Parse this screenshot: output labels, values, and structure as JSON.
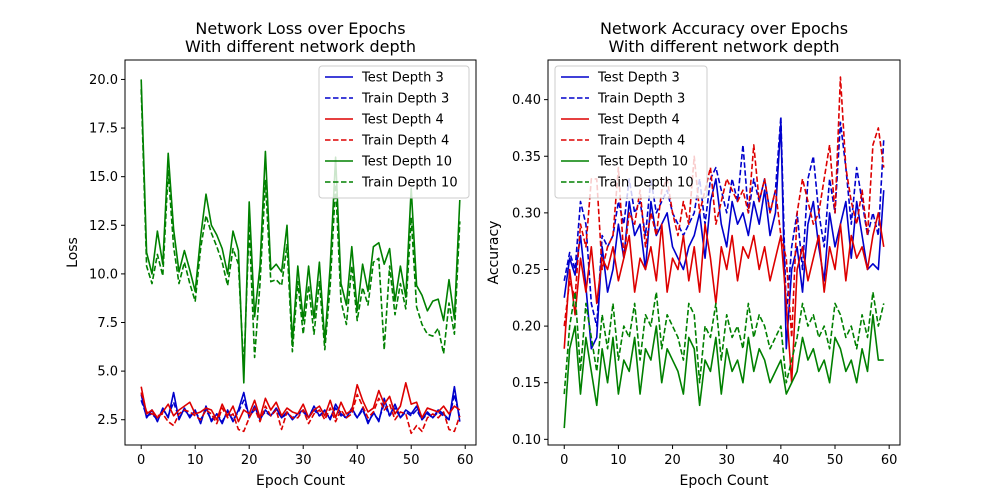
{
  "chart_data": [
    {
      "type": "line",
      "title": "Network Loss over Epochs\nWith different network depth",
      "xlabel": "Epoch Count",
      "ylabel": "Loss",
      "xlim": [
        -3,
        62
      ],
      "ylim": [
        1.2,
        21.0
      ],
      "xticks": [
        0,
        10,
        20,
        30,
        40,
        50,
        60
      ],
      "yticks": [
        2.5,
        5.0,
        7.5,
        10.0,
        12.5,
        15.0,
        17.5,
        20.0
      ],
      "ytick_labels": [
        "2.5",
        "5.0",
        "7.5",
        "10.0",
        "12.5",
        "15.0",
        "17.5",
        "20.0"
      ],
      "legend_position": "top-right",
      "grid": false,
      "x": [
        0,
        1,
        2,
        3,
        4,
        5,
        6,
        7,
        8,
        9,
        10,
        11,
        12,
        13,
        14,
        15,
        16,
        17,
        18,
        19,
        20,
        21,
        22,
        23,
        24,
        25,
        26,
        27,
        28,
        29,
        30,
        31,
        32,
        33,
        34,
        35,
        36,
        37,
        38,
        39,
        40,
        41,
        42,
        43,
        44,
        45,
        46,
        47,
        48,
        49,
        50,
        51,
        52,
        53,
        54,
        55,
        56,
        57,
        58,
        59
      ],
      "series": [
        {
          "name": "Test Depth 3",
          "color": "#0000cc",
          "style": "solid",
          "values": [
            3.8,
            2.6,
            3.0,
            2.4,
            3.1,
            2.6,
            3.9,
            2.5,
            3.1,
            2.6,
            3.0,
            2.3,
            3.2,
            2.4,
            2.8,
            2.3,
            3.0,
            2.4,
            3.0,
            3.9,
            2.6,
            3.2,
            2.5,
            3.0,
            2.7,
            3.1,
            2.6,
            2.9,
            2.5,
            2.8,
            3.0,
            2.6,
            3.2,
            2.7,
            3.0,
            2.5,
            3.3,
            2.8,
            2.6,
            3.1,
            2.6,
            3.1,
            2.3,
            2.9,
            2.4,
            3.6,
            2.7,
            3.3,
            2.6,
            3.0,
            2.8,
            3.2,
            2.5,
            2.9,
            2.6,
            3.0,
            2.8,
            2.5,
            4.2,
            2.4
          ]
        },
        {
          "name": "Train Depth 3",
          "color": "#0000cc",
          "style": "dashed",
          "values": [
            3.5,
            2.7,
            2.8,
            2.5,
            3.0,
            2.7,
            3.4,
            2.6,
            3.0,
            2.7,
            2.9,
            2.5,
            3.0,
            2.5,
            2.8,
            2.4,
            2.9,
            2.5,
            2.9,
            3.5,
            2.7,
            3.0,
            2.6,
            2.9,
            2.7,
            3.0,
            2.6,
            2.8,
            2.6,
            2.8,
            2.9,
            2.6,
            3.0,
            2.7,
            2.9,
            2.6,
            3.1,
            2.7,
            2.6,
            3.0,
            2.6,
            3.0,
            2.4,
            2.8,
            2.5,
            3.3,
            2.7,
            3.1,
            2.6,
            2.9,
            2.7,
            3.0,
            2.5,
            2.8,
            2.6,
            2.9,
            2.7,
            2.5,
            3.8,
            2.6
          ]
        },
        {
          "name": "Test Depth 4",
          "color": "#dd0000",
          "style": "solid",
          "values": [
            4.2,
            2.8,
            3.0,
            2.6,
            2.9,
            3.3,
            2.7,
            3.0,
            3.2,
            3.4,
            2.8,
            2.9,
            3.1,
            3.0,
            2.5,
            3.3,
            2.7,
            3.2,
            2.4,
            3.0,
            2.8,
            3.5,
            2.6,
            3.6,
            3.0,
            3.4,
            2.7,
            3.1,
            2.9,
            2.8,
            3.3,
            2.6,
            3.0,
            3.2,
            2.7,
            3.5,
            2.6,
            3.4,
            2.8,
            3.0,
            4.3,
            3.5,
            2.9,
            3.1,
            4.0,
            3.3,
            3.7,
            2.8,
            3.2,
            4.4,
            3.3,
            3.4,
            2.6,
            3.1,
            3.0,
            2.9,
            3.2,
            2.8,
            3.2,
            3.0
          ]
        },
        {
          "name": "Train Depth 4",
          "color": "#dd0000",
          "style": "dashed",
          "values": [
            3.9,
            2.9,
            2.8,
            2.7,
            2.8,
            2.4,
            2.2,
            2.8,
            3.0,
            2.9,
            2.7,
            2.5,
            3.0,
            2.8,
            2.3,
            3.1,
            2.6,
            2.8,
            2.0,
            1.9,
            2.6,
            3.1,
            2.4,
            3.2,
            2.7,
            3.0,
            2.0,
            2.9,
            2.6,
            2.6,
            3.0,
            2.3,
            2.8,
            3.0,
            2.5,
            3.1,
            2.4,
            3.0,
            2.6,
            2.8,
            3.8,
            3.2,
            2.6,
            2.9,
            3.6,
            3.0,
            3.3,
            2.5,
            2.9,
            2.8,
            1.8,
            2.2,
            1.9,
            2.6,
            2.8,
            2.6,
            2.9,
            2.0,
            1.9,
            2.7
          ]
        },
        {
          "name": "Test Depth 10",
          "color": "#008000",
          "style": "solid",
          "values": [
            20.0,
            11.1,
            10.0,
            12.2,
            10.5,
            16.2,
            12.3,
            10.1,
            11.2,
            10.2,
            9.1,
            11.9,
            14.1,
            12.5,
            12.0,
            11.3,
            10.0,
            12.2,
            11.2,
            4.4,
            13.7,
            7.8,
            10.4,
            16.3,
            10.2,
            10.5,
            10.1,
            12.5,
            6.5,
            10.4,
            7.6,
            10.4,
            7.7,
            10.6,
            6.5,
            10.4,
            16.0,
            9.5,
            8.4,
            11.4,
            8.1,
            10.5,
            9.1,
            11.4,
            11.6,
            10.5,
            11.3,
            8.6,
            10.4,
            8.8,
            14.4,
            9.4,
            8.9,
            8.1,
            8.6,
            8.7,
            7.6,
            9.7,
            7.7,
            13.8
          ]
        },
        {
          "name": "Train Depth 10",
          "color": "#008000",
          "style": "dashed",
          "values": [
            19.5,
            10.4,
            9.5,
            11.0,
            9.9,
            15.3,
            11.4,
            9.5,
            10.6,
            9.5,
            8.6,
            11.3,
            13.0,
            12.1,
            11.4,
            10.6,
            9.4,
            11.3,
            10.5,
            5.1,
            12.5,
            5.7,
            9.5,
            14.8,
            9.6,
            9.7,
            9.4,
            11.5,
            6.0,
            9.6,
            6.9,
            9.4,
            6.9,
            9.6,
            6.1,
            9.4,
            14.6,
            8.6,
            7.4,
            10.4,
            7.6,
            9.3,
            8.4,
            10.6,
            10.8,
            6.1,
            10.4,
            7.9,
            9.5,
            8.2,
            12.9,
            8.3,
            7.4,
            6.9,
            6.8,
            7.2,
            5.9,
            8.5,
            6.9,
            12.7
          ]
        }
      ]
    },
    {
      "type": "line",
      "title": "Network Accuracy over Epochs\nWith different network depth",
      "xlabel": "Epoch Count",
      "ylabel": "Accuracy",
      "xlim": [
        -3,
        62
      ],
      "ylim": [
        0.095,
        0.435
      ],
      "xticks": [
        0,
        10,
        20,
        30,
        40,
        50,
        60
      ],
      "yticks": [
        0.1,
        0.15,
        0.2,
        0.25,
        0.3,
        0.35,
        0.4
      ],
      "ytick_labels": [
        "0.10",
        "0.15",
        "0.20",
        "0.25",
        "0.30",
        "0.35",
        "0.40"
      ],
      "legend_position": "top-left",
      "grid": false,
      "x": [
        0,
        1,
        2,
        3,
        4,
        5,
        6,
        7,
        8,
        9,
        10,
        11,
        12,
        13,
        14,
        15,
        16,
        17,
        18,
        19,
        20,
        21,
        22,
        23,
        24,
        25,
        26,
        27,
        28,
        29,
        30,
        31,
        32,
        33,
        34,
        35,
        36,
        37,
        38,
        39,
        40,
        41,
        42,
        43,
        44,
        45,
        46,
        47,
        48,
        49,
        50,
        51,
        52,
        53,
        54,
        55,
        56,
        57,
        58,
        59
      ],
      "series": [
        {
          "name": "Test Depth 3",
          "color": "#0000cc",
          "style": "solid",
          "values": [
            0.225,
            0.26,
            0.245,
            0.28,
            0.235,
            0.18,
            0.19,
            0.27,
            0.23,
            0.25,
            0.29,
            0.26,
            0.31,
            0.28,
            0.29,
            0.25,
            0.31,
            0.28,
            0.29,
            0.3,
            0.27,
            0.26,
            0.25,
            0.27,
            0.28,
            0.3,
            0.26,
            0.31,
            0.33,
            0.29,
            0.27,
            0.31,
            0.29,
            0.3,
            0.28,
            0.31,
            0.29,
            0.32,
            0.28,
            0.3,
            0.38,
            0.18,
            0.25,
            0.27,
            0.23,
            0.29,
            0.31,
            0.27,
            0.24,
            0.3,
            0.27,
            0.29,
            0.31,
            0.26,
            0.31,
            0.28,
            0.25,
            0.255,
            0.25,
            0.32
          ]
        },
        {
          "name": "Train Depth 3",
          "color": "#0000cc",
          "style": "dashed",
          "values": [
            0.24,
            0.265,
            0.25,
            0.31,
            0.29,
            0.22,
            0.2,
            0.28,
            0.27,
            0.28,
            0.31,
            0.29,
            0.33,
            0.3,
            0.31,
            0.28,
            0.33,
            0.3,
            0.31,
            0.32,
            0.3,
            0.29,
            0.28,
            0.29,
            0.3,
            0.33,
            0.29,
            0.33,
            0.34,
            0.32,
            0.3,
            0.33,
            0.31,
            0.36,
            0.3,
            0.33,
            0.31,
            0.33,
            0.3,
            0.32,
            0.385,
            0.21,
            0.27,
            0.3,
            0.25,
            0.33,
            0.35,
            0.3,
            0.27,
            0.33,
            0.3,
            0.38,
            0.34,
            0.29,
            0.34,
            0.31,
            0.28,
            0.3,
            0.28,
            0.365
          ]
        },
        {
          "name": "Train Depth 4",
          "color": "#dd0000",
          "style": "dashed",
          "values": [
            0.2,
            0.24,
            0.225,
            0.29,
            0.27,
            0.33,
            0.33,
            0.25,
            0.27,
            0.28,
            0.34,
            0.26,
            0.3,
            0.29,
            0.32,
            0.27,
            0.3,
            0.28,
            0.32,
            0.33,
            0.3,
            0.28,
            0.31,
            0.29,
            0.35,
            0.3,
            0.32,
            0.34,
            0.29,
            0.31,
            0.33,
            0.32,
            0.31,
            0.32,
            0.3,
            0.36,
            0.31,
            0.33,
            0.3,
            0.32,
            0.28,
            0.26,
            0.19,
            0.3,
            0.33,
            0.31,
            0.29,
            0.3,
            0.33,
            0.36,
            0.3,
            0.42,
            0.34,
            0.31,
            0.29,
            0.32,
            0.28,
            0.36,
            0.375,
            0.34
          ]
        },
        {
          "name": "Test Depth 4",
          "color": "#dd0000",
          "style": "solid",
          "values": [
            0.18,
            0.25,
            0.21,
            0.26,
            0.23,
            0.27,
            0.22,
            0.26,
            0.25,
            0.27,
            0.24,
            0.26,
            0.28,
            0.23,
            0.26,
            0.25,
            0.27,
            0.24,
            0.29,
            0.23,
            0.26,
            0.25,
            0.28,
            0.24,
            0.27,
            0.23,
            0.29,
            0.26,
            0.22,
            0.27,
            0.25,
            0.28,
            0.24,
            0.27,
            0.26,
            0.28,
            0.25,
            0.27,
            0.24,
            0.26,
            0.28,
            0.22,
            0.15,
            0.25,
            0.27,
            0.24,
            0.26,
            0.28,
            0.23,
            0.27,
            0.25,
            0.29,
            0.24,
            0.28,
            0.26,
            0.27,
            0.25,
            0.28,
            0.3,
            0.27
          ]
        },
        {
          "name": "Test Depth 10",
          "color": "#008000",
          "style": "solid",
          "values": [
            0.11,
            0.18,
            0.2,
            0.14,
            0.19,
            0.16,
            0.13,
            0.18,
            0.15,
            0.19,
            0.14,
            0.17,
            0.16,
            0.19,
            0.14,
            0.18,
            0.17,
            0.2,
            0.15,
            0.18,
            0.17,
            0.16,
            0.14,
            0.19,
            0.18,
            0.13,
            0.17,
            0.16,
            0.19,
            0.14,
            0.18,
            0.16,
            0.17,
            0.15,
            0.19,
            0.16,
            0.18,
            0.17,
            0.15,
            0.16,
            0.17,
            0.14,
            0.15,
            0.16,
            0.19,
            0.17,
            0.18,
            0.16,
            0.17,
            0.15,
            0.19,
            0.18,
            0.16,
            0.17,
            0.15,
            0.18,
            0.16,
            0.21,
            0.17,
            0.17
          ]
        },
        {
          "name": "Train Depth 10",
          "color": "#008000",
          "style": "dashed",
          "values": [
            0.14,
            0.2,
            0.23,
            0.16,
            0.22,
            0.19,
            0.16,
            0.21,
            0.18,
            0.22,
            0.17,
            0.2,
            0.19,
            0.22,
            0.17,
            0.21,
            0.2,
            0.23,
            0.18,
            0.21,
            0.2,
            0.19,
            0.17,
            0.22,
            0.21,
            0.15,
            0.2,
            0.19,
            0.22,
            0.17,
            0.21,
            0.19,
            0.2,
            0.18,
            0.22,
            0.19,
            0.21,
            0.2,
            0.18,
            0.19,
            0.2,
            0.15,
            0.17,
            0.19,
            0.22,
            0.2,
            0.21,
            0.19,
            0.2,
            0.18,
            0.22,
            0.21,
            0.19,
            0.2,
            0.18,
            0.21,
            0.19,
            0.23,
            0.2,
            0.22
          ]
        }
      ]
    }
  ]
}
